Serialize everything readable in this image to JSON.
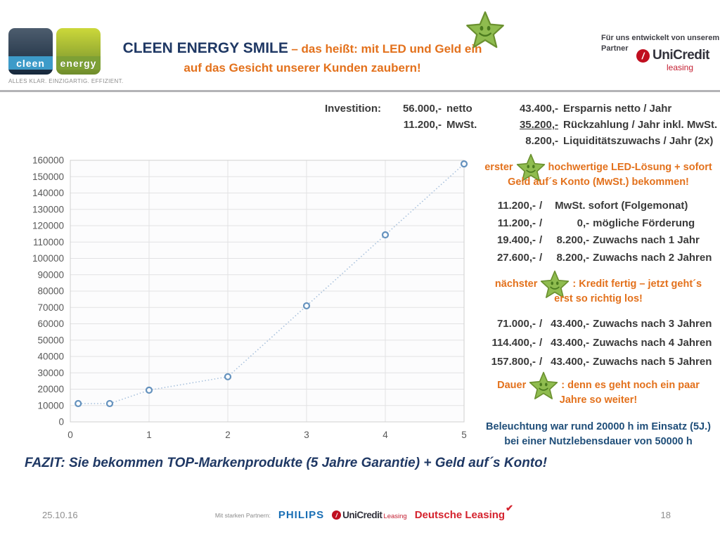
{
  "logo": {
    "word1": "cleen",
    "word2": "energy",
    "tagline": "ALLES KLAR. EINZIGARTIG. EFFIZIENT."
  },
  "title": {
    "main": "CLEEN ENERGY SMILE",
    "sub1": "– das heißt: mit LED und Geld ein",
    "sub2": "auf das Gesicht unserer Kunden zaubern!"
  },
  "partner_note": {
    "line1": "Für uns entwickelt von unserem",
    "line2": "Partner",
    "logo_text": "UniCredit",
    "logo_sub": "leasing"
  },
  "investition": {
    "label": "Investition:",
    "left_rows": [
      {
        "amount": "56.000,-",
        "desc": "netto"
      },
      {
        "amount": "11.200,-",
        "desc": "MwSt."
      }
    ],
    "right_rows": [
      {
        "amount": "43.400,-",
        "desc": "Ersparnis netto / Jahr"
      },
      {
        "amount": "35.200,-",
        "desc": "Rückzahlung / Jahr inkl. MwSt."
      },
      {
        "amount": "8.200,-",
        "desc": "Liquiditätszuwachs / Jahr (2x)"
      }
    ]
  },
  "chart_data": {
    "type": "line",
    "x": [
      0.1,
      0.5,
      1,
      2,
      3,
      4,
      5
    ],
    "values": [
      11200,
      11200,
      19400,
      27600,
      71000,
      114400,
      157800
    ],
    "xlim": [
      0,
      5
    ],
    "ylim": [
      0,
      160000
    ],
    "x_ticks": [
      0,
      1,
      2,
      3,
      4,
      5
    ],
    "y_ticks": [
      0,
      10000,
      20000,
      30000,
      40000,
      50000,
      60000,
      70000,
      80000,
      90000,
      100000,
      110000,
      120000,
      130000,
      140000,
      150000,
      160000
    ],
    "title": "",
    "xlabel": "",
    "ylabel": "",
    "grid": true,
    "legend": "none",
    "line_style": "dotted",
    "marker": "open-circle",
    "line_color": "#a9c2dd",
    "marker_color": "#6592be"
  },
  "sections": [
    {
      "label": "erster",
      "head1": "hochwertige LED-Lösung + sofort",
      "head2": "Geld auf´s Konto (MwSt.) bekommen!",
      "rows": [
        {
          "a": "11.200,-",
          "b": "",
          "desc": "MwSt. sofort (Folgemonat)"
        },
        {
          "a": "11.200,-",
          "b": "0,-",
          "desc": "mögliche Förderung"
        },
        {
          "a": "19.400,-",
          "b": "8.200,-",
          "desc": "Zuwachs nach 1 Jahr"
        },
        {
          "a": "27.600,-",
          "b": "8.200,-",
          "desc": "Zuwachs nach 2 Jahren"
        }
      ]
    },
    {
      "label": "nächster",
      "head1": ": Kredit fertig – jetzt geht´s",
      "head2": "erst so richtig los!",
      "rows": [
        {
          "a": "71.000,-",
          "b": "43.400,-",
          "desc": "Zuwachs nach 3 Jahren"
        },
        {
          "a": "114.400,-",
          "b": "43.400,-",
          "desc": "Zuwachs nach 4 Jahren"
        },
        {
          "a": "157.800,-",
          "b": "43.400,-",
          "desc": "Zuwachs nach 5 Jahren"
        }
      ]
    },
    {
      "label": "Dauer",
      "head1": ": denn es geht noch ein paar",
      "head2": "Jahre so weiter!",
      "rows": []
    }
  ],
  "note": {
    "line1": "Beleuchtung war rund 20000 h im Einsatz (5J.)",
    "line2": "bei einer Nutzlebensdauer von 50000 h"
  },
  "fazit": "FAZIT: Sie bekommen TOP-Markenprodukte (5 Jahre Garantie) + Geld auf´s Konto!",
  "footer": {
    "date": "25.10.16",
    "partners_label": "Mit starken Partnern:",
    "philips": "PHILIPS",
    "unicredit": "UniCredit",
    "unicredit_sub": "Leasing",
    "deutsche_leasing": "Deutsche Leasing",
    "page": "18"
  },
  "misc": {
    "sep": "/"
  },
  "colors": {
    "navy": "#1f3864",
    "orange": "#e3711c",
    "note_blue": "#1f4e79",
    "star_green": "#8fbc4f",
    "star_outline": "#6b9130"
  }
}
